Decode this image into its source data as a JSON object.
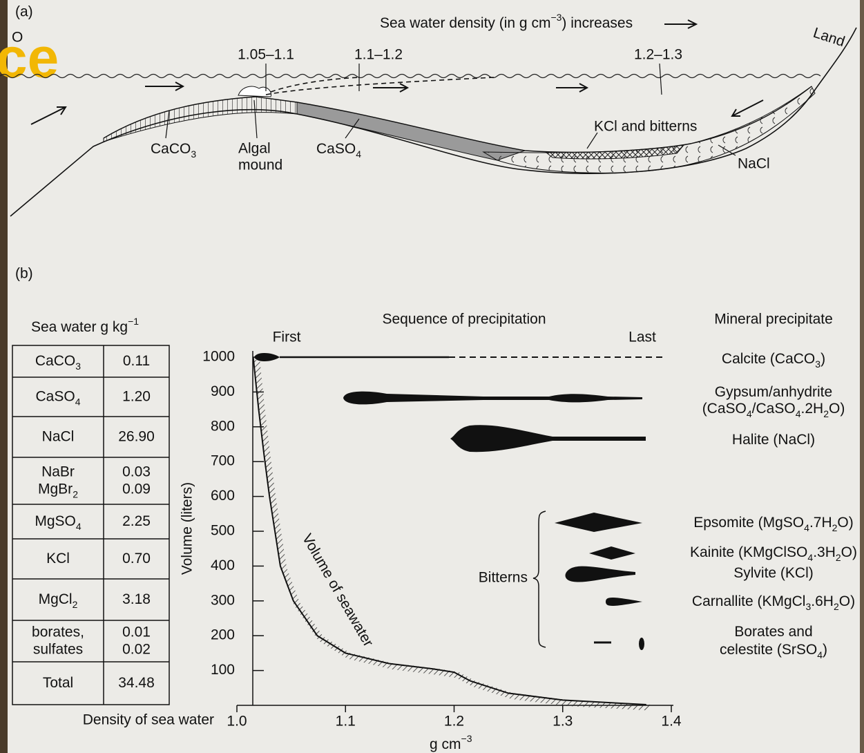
{
  "panel_a": {
    "label": "(a)",
    "corner_fragment": "O",
    "corner_text": "ce",
    "density_note": [
      "Sea water density (in g cm",
      "−3",
      ") increases"
    ],
    "ranges": [
      "1.05–1.1",
      "1.1–1.2",
      "1.2–1.3"
    ],
    "land": "Land",
    "caco3": [
      "CaCO",
      "3"
    ],
    "algal_mound": [
      "Algal",
      "mound"
    ],
    "caso4": [
      "CaSO",
      "4"
    ],
    "kcl": "KCl and bitterns",
    "nacl": "NaCl"
  },
  "panel_b": {
    "label": "(b)",
    "table": {
      "header": [
        "Sea water g kg",
        "−1"
      ],
      "rows": [
        [
          [
            [
              "CaCO",
              "3"
            ]
          ],
          [
            [
              "0.11"
            ]
          ]
        ],
        [
          [
            [
              "CaSO",
              "4"
            ]
          ],
          [
            [
              "1.20"
            ]
          ]
        ],
        [
          [
            [
              "NaCl"
            ]
          ],
          [
            [
              "26.90"
            ]
          ]
        ],
        [
          [
            [
              "NaBr"
            ],
            [
              "MgBr",
              "2"
            ]
          ],
          [
            [
              "0.03"
            ],
            [
              "0.09"
            ]
          ]
        ],
        [
          [
            [
              "MgSO",
              "4"
            ]
          ],
          [
            [
              "2.25"
            ]
          ]
        ],
        [
          [
            [
              "KCl"
            ]
          ],
          [
            [
              "0.70"
            ]
          ]
        ],
        [
          [
            [
              "MgCl",
              "2"
            ]
          ],
          [
            [
              "3.18"
            ]
          ]
        ],
        [
          [
            [
              "borates,"
            ],
            [
              "sulfates"
            ]
          ],
          [
            [
              "0.01"
            ],
            [
              "0.02"
            ]
          ]
        ],
        [
          [
            [
              "Total"
            ]
          ],
          [
            [
              "34.48"
            ]
          ]
        ]
      ]
    },
    "sequence_title": "Sequence of precipitation",
    "first": "First",
    "last": "Last",
    "mineral_title": "Mineral precipitate",
    "minerals": [
      [
        [
          "Calcite (CaCO",
          "3",
          ")"
        ]
      ],
      [
        [
          "Gypsum/anhydrite"
        ],
        [
          "(CaSO",
          "4",
          "/CaSO",
          "4",
          ".2H",
          "2",
          "O)"
        ]
      ],
      [
        [
          "Halite (NaCl)"
        ]
      ],
      [
        [
          "Epsomite (MgSO",
          "4",
          ".7H",
          "2",
          "O)"
        ]
      ],
      [
        [
          "Kainite (KMgClSO",
          "4",
          ".3H",
          "2",
          "O)"
        ]
      ],
      [
        [
          "Sylvite (KCl)"
        ]
      ],
      [
        [
          "Carnallite (KMgCl",
          "3",
          ".6H",
          "2",
          "O)"
        ]
      ],
      [
        [
          "Borates and"
        ],
        [
          "celestite (SrSO",
          "4",
          ")"
        ]
      ]
    ],
    "bitterns": "Bitterns",
    "ylabel": "Volume (liters)",
    "curve_label": "Volume of seawater",
    "xlabel": "Density of sea water",
    "xunit": [
      "g cm",
      "−3"
    ],
    "xlim": [
      1.0,
      1.4
    ],
    "xticks": [
      {
        "value": 1.0,
        "label": "1.0"
      },
      1.1,
      1.2,
      1.3,
      1.4
    ],
    "ylim": [
      0,
      1000
    ],
    "yticks": [
      100,
      200,
      300,
      400,
      500,
      600,
      700,
      800,
      900,
      1000
    ],
    "curve": {
      "x": [
        1.015,
        1.02,
        1.025,
        1.03,
        1.04,
        1.052,
        1.074,
        1.1,
        1.14,
        1.18,
        1.2,
        1.215,
        1.25,
        1.3,
        1.377
      ],
      "y": [
        1000,
        850,
        720,
        600,
        400,
        300,
        200,
        150,
        120,
        105,
        95,
        70,
        35,
        15,
        2
      ]
    }
  }
}
